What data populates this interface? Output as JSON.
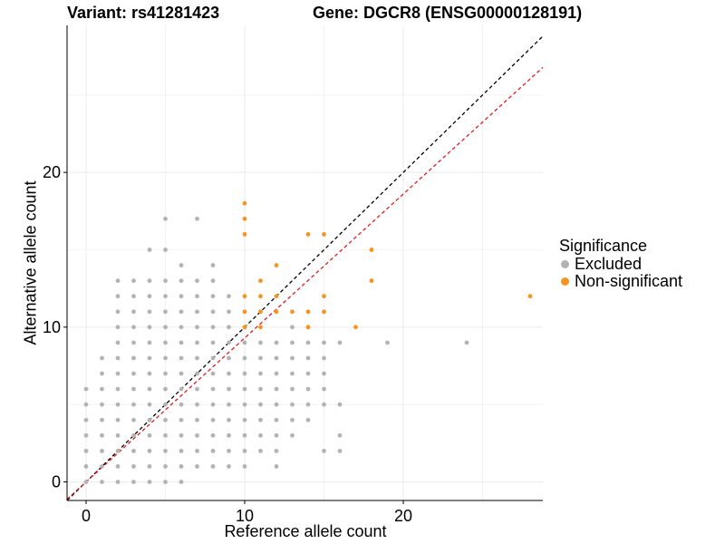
{
  "chart_data": {
    "type": "scatter",
    "title_left": "Variant: rs41281423",
    "title_right": "Gene: DGCR8 (ENSG00000128191)",
    "xlabel": "Reference allele count",
    "ylabel": "Alternative allele count",
    "xlim": [
      -1.2,
      28.8
    ],
    "ylim": [
      -1.2,
      29.5
    ],
    "x_ticks": [
      0,
      10,
      20
    ],
    "y_ticks": [
      0,
      10,
      20
    ],
    "reference_lines": [
      {
        "name": "identity",
        "color": "#000000",
        "slope": 1.0,
        "intercept": 0
      },
      {
        "name": "expected-ratio",
        "color": "#e31a1c",
        "slope": 0.93,
        "intercept": 0
      }
    ],
    "legend": {
      "title": "Significance",
      "items": [
        {
          "label": "Excluded",
          "color": "#b3b3b3"
        },
        {
          "label": "Non-significant",
          "color": "#f7941d"
        }
      ]
    },
    "series": [
      {
        "name": "Excluded",
        "color": "#b3b3b3",
        "points": [
          [
            0,
            0
          ],
          [
            0,
            1
          ],
          [
            0,
            2
          ],
          [
            0,
            3
          ],
          [
            0,
            4
          ],
          [
            0,
            5
          ],
          [
            0,
            6
          ],
          [
            1,
            0
          ],
          [
            1,
            1
          ],
          [
            1,
            2
          ],
          [
            1,
            3
          ],
          [
            1,
            4
          ],
          [
            1,
            5
          ],
          [
            1,
            6
          ],
          [
            1,
            7
          ],
          [
            1,
            8
          ],
          [
            2,
            0
          ],
          [
            2,
            1
          ],
          [
            2,
            2
          ],
          [
            2,
            3
          ],
          [
            2,
            4
          ],
          [
            2,
            5
          ],
          [
            2,
            6
          ],
          [
            2,
            7
          ],
          [
            2,
            8
          ],
          [
            2,
            9
          ],
          [
            2,
            10
          ],
          [
            2,
            11
          ],
          [
            2,
            12
          ],
          [
            2,
            13
          ],
          [
            3,
            0
          ],
          [
            3,
            1
          ],
          [
            3,
            2
          ],
          [
            3,
            3
          ],
          [
            3,
            4
          ],
          [
            3,
            5
          ],
          [
            3,
            6
          ],
          [
            3,
            7
          ],
          [
            3,
            8
          ],
          [
            3,
            9
          ],
          [
            3,
            10
          ],
          [
            3,
            11
          ],
          [
            3,
            12
          ],
          [
            3,
            13
          ],
          [
            4,
            0
          ],
          [
            4,
            1
          ],
          [
            4,
            2
          ],
          [
            4,
            3
          ],
          [
            4,
            4
          ],
          [
            4,
            5
          ],
          [
            4,
            6
          ],
          [
            4,
            7
          ],
          [
            4,
            8
          ],
          [
            4,
            9
          ],
          [
            4,
            10
          ],
          [
            4,
            11
          ],
          [
            4,
            12
          ],
          [
            4,
            13
          ],
          [
            4,
            15
          ],
          [
            5,
            0
          ],
          [
            5,
            1
          ],
          [
            5,
            2
          ],
          [
            5,
            3
          ],
          [
            5,
            4
          ],
          [
            5,
            5
          ],
          [
            5,
            6
          ],
          [
            5,
            7
          ],
          [
            5,
            8
          ],
          [
            5,
            9
          ],
          [
            5,
            10
          ],
          [
            5,
            11
          ],
          [
            5,
            12
          ],
          [
            5,
            13
          ],
          [
            5,
            15
          ],
          [
            5,
            17
          ],
          [
            6,
            0
          ],
          [
            6,
            1
          ],
          [
            6,
            2
          ],
          [
            6,
            3
          ],
          [
            6,
            4
          ],
          [
            6,
            5
          ],
          [
            6,
            6
          ],
          [
            6,
            7
          ],
          [
            6,
            8
          ],
          [
            6,
            9
          ],
          [
            6,
            10
          ],
          [
            6,
            11
          ],
          [
            6,
            12
          ],
          [
            6,
            13
          ],
          [
            6,
            14
          ],
          [
            7,
            1
          ],
          [
            7,
            2
          ],
          [
            7,
            3
          ],
          [
            7,
            4
          ],
          [
            7,
            5
          ],
          [
            7,
            6
          ],
          [
            7,
            7
          ],
          [
            7,
            8
          ],
          [
            7,
            9
          ],
          [
            7,
            10
          ],
          [
            7,
            11
          ],
          [
            7,
            12
          ],
          [
            7,
            13
          ],
          [
            7,
            17
          ],
          [
            8,
            1
          ],
          [
            8,
            2
          ],
          [
            8,
            3
          ],
          [
            8,
            4
          ],
          [
            8,
            5
          ],
          [
            8,
            6
          ],
          [
            8,
            7
          ],
          [
            8,
            8
          ],
          [
            8,
            9
          ],
          [
            8,
            10
          ],
          [
            8,
            11
          ],
          [
            8,
            12
          ],
          [
            8,
            13
          ],
          [
            8,
            14
          ],
          [
            9,
            1
          ],
          [
            9,
            2
          ],
          [
            9,
            3
          ],
          [
            9,
            4
          ],
          [
            9,
            5
          ],
          [
            9,
            6
          ],
          [
            9,
            7
          ],
          [
            9,
            8
          ],
          [
            9,
            9
          ],
          [
            9,
            10
          ],
          [
            9,
            11
          ],
          [
            9,
            12
          ],
          [
            10,
            1
          ],
          [
            10,
            2
          ],
          [
            10,
            3
          ],
          [
            10,
            4
          ],
          [
            10,
            5
          ],
          [
            10,
            6
          ],
          [
            10,
            7
          ],
          [
            10,
            8
          ],
          [
            10,
            9
          ],
          [
            11,
            2
          ],
          [
            11,
            3
          ],
          [
            11,
            4
          ],
          [
            11,
            5
          ],
          [
            11,
            6
          ],
          [
            11,
            7
          ],
          [
            11,
            8
          ],
          [
            11,
            9
          ],
          [
            12,
            1
          ],
          [
            12,
            2
          ],
          [
            12,
            3
          ],
          [
            12,
            4
          ],
          [
            12,
            5
          ],
          [
            12,
            6
          ],
          [
            12,
            7
          ],
          [
            12,
            8
          ],
          [
            12,
            9
          ],
          [
            13,
            3
          ],
          [
            13,
            4
          ],
          [
            13,
            5
          ],
          [
            13,
            6
          ],
          [
            13,
            7
          ],
          [
            13,
            8
          ],
          [
            13,
            9
          ],
          [
            13,
            10
          ],
          [
            14,
            4
          ],
          [
            14,
            5
          ],
          [
            14,
            6
          ],
          [
            14,
            7
          ],
          [
            14,
            8
          ],
          [
            14,
            9
          ],
          [
            15,
            2
          ],
          [
            15,
            5
          ],
          [
            15,
            6
          ],
          [
            15,
            7
          ],
          [
            15,
            8
          ],
          [
            15,
            9
          ],
          [
            16,
            2
          ],
          [
            16,
            3
          ],
          [
            16,
            5
          ],
          [
            16,
            9
          ],
          [
            19,
            9
          ],
          [
            24,
            9
          ]
        ]
      },
      {
        "name": "Non-significant",
        "color": "#f7941d",
        "points": [
          [
            10,
            10
          ],
          [
            10,
            11
          ],
          [
            10,
            12
          ],
          [
            10,
            16
          ],
          [
            10,
            17
          ],
          [
            10,
            18
          ],
          [
            11,
            10
          ],
          [
            11,
            11
          ],
          [
            11,
            12
          ],
          [
            11,
            13
          ],
          [
            12,
            11
          ],
          [
            12,
            12
          ],
          [
            12,
            14
          ],
          [
            13,
            11
          ],
          [
            14,
            10
          ],
          [
            14,
            11
          ],
          [
            14,
            16
          ],
          [
            15,
            11
          ],
          [
            15,
            12
          ],
          [
            15,
            16
          ],
          [
            17,
            10
          ],
          [
            18,
            13
          ],
          [
            18,
            15
          ],
          [
            28,
            12
          ]
        ]
      }
    ]
  }
}
